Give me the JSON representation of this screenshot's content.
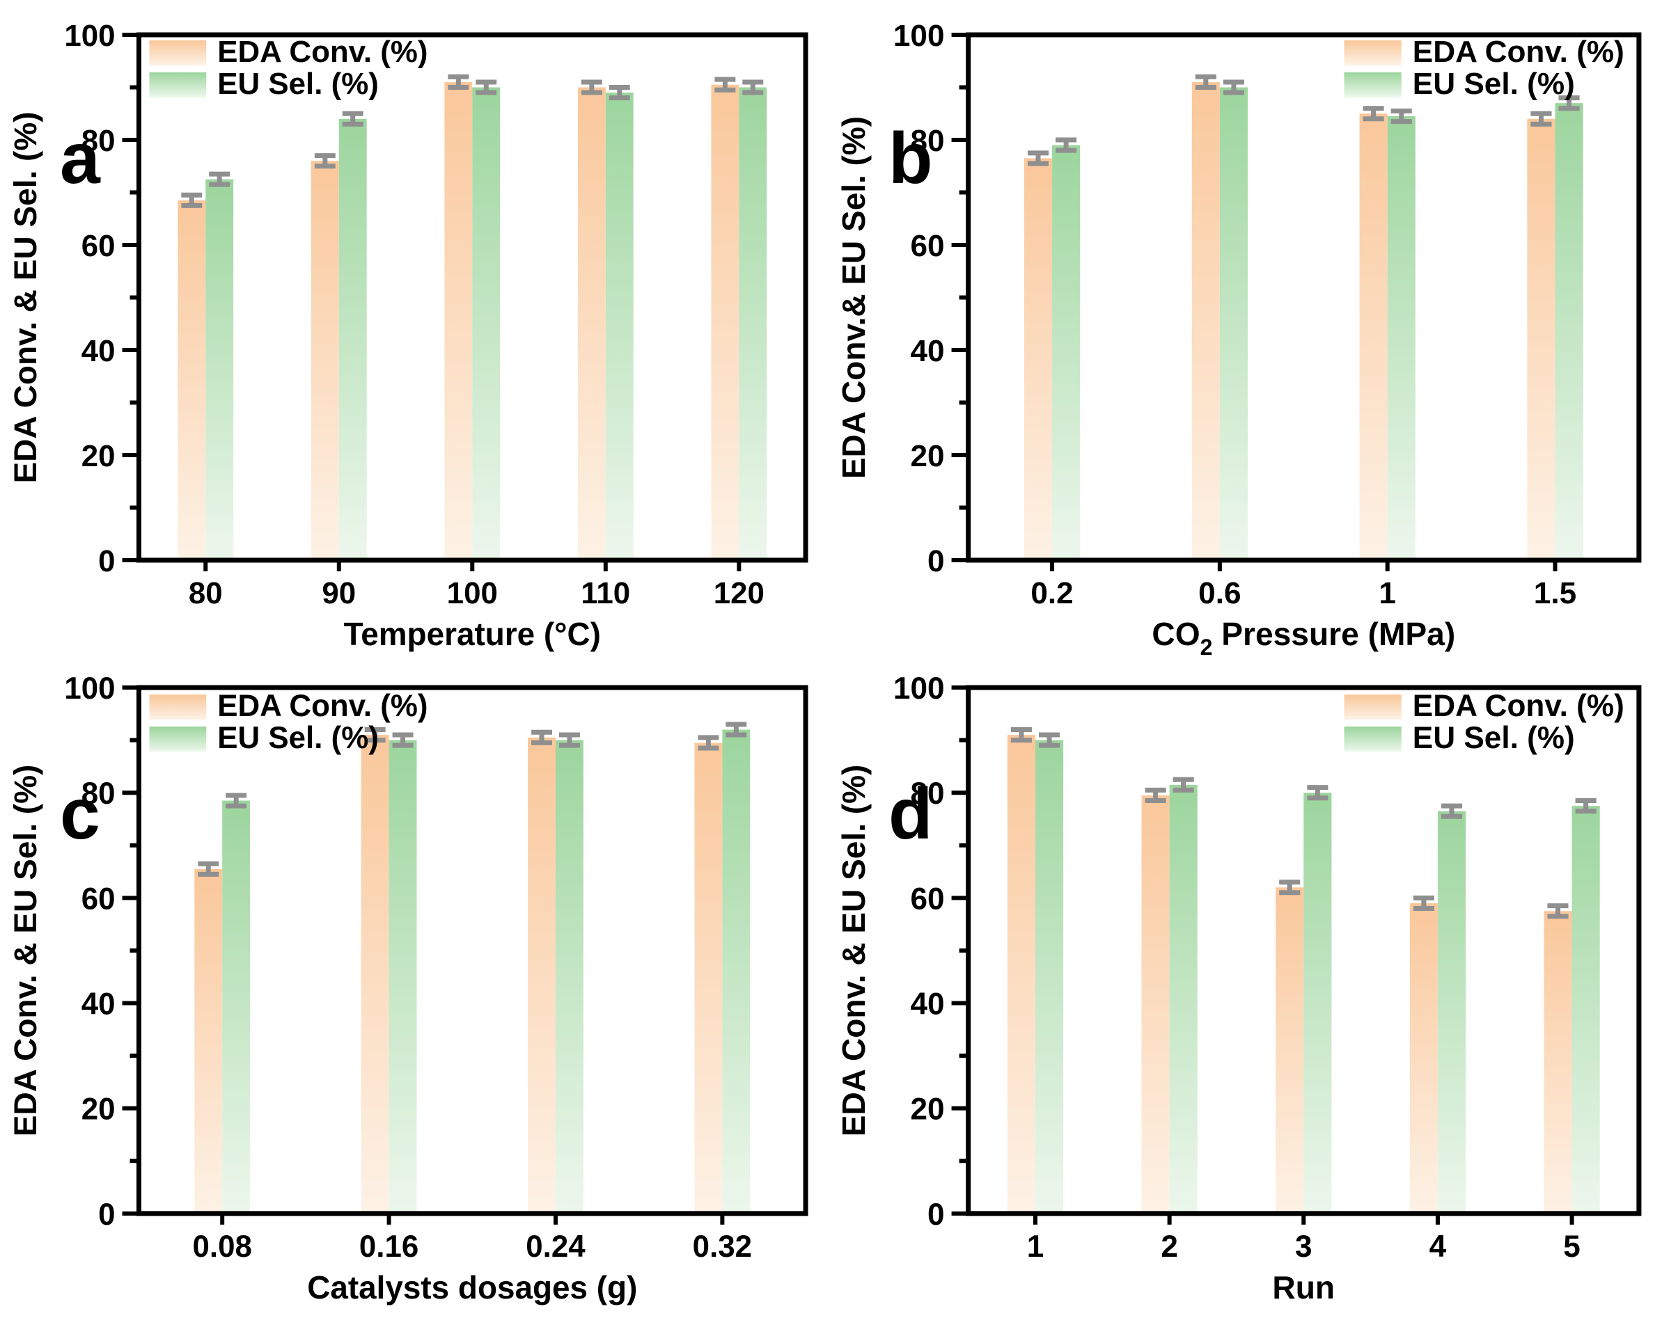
{
  "figure": {
    "background": "#ffffff",
    "axis_color": "#000000",
    "series_colors": {
      "eda_conv": {
        "top": "#FAC79A",
        "bottom": "#FDF2E6"
      },
      "eu_sel": {
        "top": "#9CD59D",
        "bottom": "#EDF7ED"
      },
      "error_bar": "#8F8F8F"
    }
  },
  "chart_data": [
    {
      "panel_label": "a",
      "type": "bar",
      "categories": [
        "80",
        "90",
        "100",
        "110",
        "120"
      ],
      "series": [
        {
          "name": "EDA Conv. (%)",
          "values": [
            68.5,
            76,
            91,
            90,
            90.5
          ],
          "errors": [
            1,
            1,
            1,
            1,
            1
          ]
        },
        {
          "name": "EU Sel. (%)",
          "values": [
            72.5,
            84,
            90,
            89,
            90
          ],
          "errors": [
            1,
            1,
            1,
            1,
            1
          ]
        }
      ],
      "xlabel": "Temperature (°C)",
      "xlabel_segments": [
        {
          "text": "Temperature (°C)"
        }
      ],
      "ylabel": "EDA Conv. & EU Sel. (%)",
      "ylim": [
        0,
        100
      ],
      "yticks": [
        0,
        20,
        40,
        60,
        80,
        100
      ],
      "y_minor_step": 10,
      "grid": false,
      "legend_position": "top-left"
    },
    {
      "panel_label": "b",
      "type": "bar",
      "categories": [
        "0.2",
        "0.6",
        "1",
        "1.5"
      ],
      "series": [
        {
          "name": "EDA Conv. (%)",
          "values": [
            76.5,
            91,
            85,
            84
          ],
          "errors": [
            1,
            1,
            1,
            1
          ]
        },
        {
          "name": "EU Sel. (%)",
          "values": [
            79,
            90,
            84.5,
            87
          ],
          "errors": [
            1,
            1,
            1,
            1
          ]
        }
      ],
      "xlabel": "CO2 Pressure (MPa)",
      "xlabel_segments": [
        {
          "text": "CO"
        },
        {
          "text": "2",
          "subscript": true
        },
        {
          "text": " Pressure (MPa)"
        }
      ],
      "ylabel": "EDA Conv.& EU Sel. (%)",
      "ylim": [
        0,
        100
      ],
      "yticks": [
        0,
        20,
        40,
        60,
        80,
        100
      ],
      "y_minor_step": 10,
      "grid": false,
      "legend_position": "top-right"
    },
    {
      "panel_label": "c",
      "type": "bar",
      "categories": [
        "0.08",
        "0.16",
        "0.24",
        "0.32"
      ],
      "series": [
        {
          "name": "EDA Conv. (%)",
          "values": [
            65.5,
            91,
            90.5,
            89.5
          ],
          "errors": [
            1,
            1,
            1,
            1
          ]
        },
        {
          "name": "EU Sel. (%)",
          "values": [
            78.5,
            90,
            90,
            92
          ],
          "errors": [
            1,
            1,
            1,
            1
          ]
        }
      ],
      "xlabel": "Catalysts dosages (g)",
      "xlabel_segments": [
        {
          "text": "Catalysts dosages (g)"
        }
      ],
      "ylabel": "EDA Conv. & EU Sel. (%)",
      "ylim": [
        0,
        100
      ],
      "yticks": [
        0,
        20,
        40,
        60,
        80,
        100
      ],
      "y_minor_step": 10,
      "grid": false,
      "legend_position": "top-left"
    },
    {
      "panel_label": "d",
      "type": "bar",
      "categories": [
        "1",
        "2",
        "3",
        "4",
        "5"
      ],
      "series": [
        {
          "name": "EDA Conv. (%)",
          "values": [
            91,
            79.5,
            62,
            59,
            57.5
          ],
          "errors": [
            1,
            1,
            1,
            1,
            1
          ]
        },
        {
          "name": "EU Sel. (%)",
          "values": [
            90,
            81.5,
            80,
            76.5,
            77.5
          ],
          "errors": [
            1,
            1,
            1,
            1,
            1
          ]
        }
      ],
      "xlabel": "Run",
      "xlabel_segments": [
        {
          "text": "Run"
        }
      ],
      "ylabel": "EDA Conv. & EU Sel. (%)",
      "ylim": [
        0,
        100
      ],
      "yticks": [
        0,
        20,
        40,
        60,
        80,
        100
      ],
      "y_minor_step": 10,
      "grid": false,
      "legend_position": "top-right"
    }
  ]
}
